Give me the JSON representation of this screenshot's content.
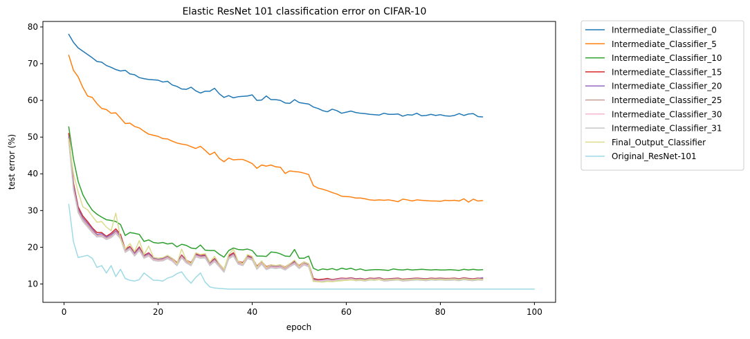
{
  "chart_data": {
    "type": "line",
    "title": "Elastic ResNet 101 classification error on CIFAR-10",
    "xlabel": "epoch",
    "ylabel": "test error (%)",
    "xlim": [
      -4.5,
      104.5
    ],
    "ylim": [
      5,
      81.5
    ],
    "xticks": [
      0,
      20,
      40,
      60,
      80,
      100
    ],
    "yticks": [
      10,
      20,
      30,
      40,
      50,
      60,
      70,
      80
    ],
    "grid": false,
    "legend_position": "outside-right",
    "series": [
      {
        "name": "Intermediate_Classifier_0",
        "color": "#1f77b4",
        "x_start": 1,
        "values": [
          78.0,
          75.8,
          74.3,
          73.4,
          72.5,
          71.6,
          70.6,
          70.4,
          69.5,
          69.0,
          68.4,
          68.0,
          68.2,
          67.2,
          67.0,
          66.2,
          65.9,
          65.7,
          65.6,
          65.5,
          65.0,
          65.2,
          64.2,
          63.8,
          63.1,
          63.0,
          63.6,
          62.6,
          62.0,
          62.5,
          62.5,
          63.3,
          61.8,
          60.8,
          61.3,
          60.7,
          61.0,
          61.1,
          61.2,
          61.5,
          60.0,
          60.1,
          61.2,
          60.2,
          60.2,
          60.0,
          59.3,
          59.2,
          60.2,
          59.4,
          59.2,
          59.0,
          58.2,
          57.8,
          57.2,
          56.9,
          57.6,
          57.2,
          56.5,
          56.8,
          57.1,
          56.7,
          56.5,
          56.4,
          56.2,
          56.1,
          56.0,
          56.5,
          56.2,
          56.2,
          56.3,
          55.7,
          56.1,
          56.0,
          56.5,
          55.8,
          55.9,
          56.2,
          55.9,
          56.1,
          55.8,
          55.7,
          55.9,
          56.4,
          55.9,
          56.3,
          56.4,
          55.6,
          55.5
        ]
      },
      {
        "name": "Intermediate_Classifier_5",
        "color": "#ff7f0e",
        "x_start": 1,
        "values": [
          72.3,
          68.2,
          66.4,
          63.5,
          61.2,
          60.8,
          59.1,
          57.8,
          57.5,
          56.5,
          56.6,
          55.2,
          53.7,
          53.8,
          52.9,
          52.5,
          51.6,
          50.8,
          50.5,
          50.2,
          49.6,
          49.5,
          48.9,
          48.4,
          48.1,
          47.9,
          47.4,
          46.9,
          47.5,
          46.4,
          45.2,
          45.9,
          44.2,
          43.3,
          44.3,
          43.8,
          43.9,
          43.9,
          43.4,
          42.8,
          41.5,
          42.4,
          42.1,
          42.4,
          41.9,
          41.8,
          40.1,
          40.8,
          40.6,
          40.5,
          40.2,
          39.8,
          36.8,
          36.1,
          35.8,
          35.4,
          34.9,
          34.5,
          33.9,
          33.8,
          33.7,
          33.4,
          33.4,
          33.2,
          32.9,
          32.8,
          32.9,
          32.8,
          32.9,
          32.7,
          32.4,
          33.1,
          32.9,
          32.6,
          32.9,
          32.8,
          32.7,
          32.6,
          32.6,
          32.5,
          32.8,
          32.7,
          32.8,
          32.6,
          33.2,
          32.3,
          33.1,
          32.6,
          32.7
        ]
      },
      {
        "name": "Intermediate_Classifier_10",
        "color": "#2ca02c",
        "x_start": 1,
        "values": [
          52.8,
          44.0,
          37.9,
          34.3,
          32.0,
          30.1,
          29.0,
          28.2,
          27.5,
          27.3,
          27.0,
          26.2,
          23.2,
          24.0,
          23.8,
          23.5,
          21.6,
          22.0,
          21.3,
          21.1,
          21.3,
          20.9,
          21.1,
          20.1,
          20.8,
          20.5,
          19.8,
          19.6,
          20.6,
          19.2,
          19.1,
          19.1,
          18.1,
          17.3,
          19.1,
          19.8,
          19.4,
          19.3,
          19.5,
          19.1,
          17.6,
          17.6,
          17.5,
          18.7,
          18.6,
          18.2,
          17.6,
          17.5,
          19.4,
          17.0,
          17.0,
          17.6,
          14.3,
          13.7,
          14.1,
          13.9,
          14.2,
          13.8,
          14.3,
          14.0,
          14.3,
          13.8,
          14.1,
          13.7,
          13.8,
          13.9,
          13.9,
          13.8,
          13.7,
          14.1,
          13.9,
          13.8,
          14.0,
          13.8,
          13.9,
          14.0,
          13.9,
          13.8,
          13.9,
          13.8,
          13.8,
          13.9,
          13.8,
          13.7,
          14.0,
          13.8,
          14.0,
          13.8,
          13.9
        ]
      },
      {
        "name": "Intermediate_Classifier_15",
        "color": "#d62728",
        "x_start": 1,
        "values": [
          51.0,
          37.5,
          31.0,
          28.5,
          27.0,
          25.3,
          24.0,
          24.0,
          23.0,
          23.8,
          25.0,
          23.5,
          19.5,
          20.2,
          18.5,
          20.1,
          17.8,
          18.5,
          17.2,
          17.0,
          17.0,
          17.7,
          17.0,
          15.8,
          17.9,
          16.5,
          15.8,
          18.2,
          17.8,
          17.9,
          15.8,
          16.9,
          15.5,
          14.0,
          17.7,
          18.5,
          16.2,
          15.8,
          17.7,
          17.3,
          14.8,
          16.2,
          14.7,
          15.2,
          15.0,
          15.2,
          14.6,
          15.5,
          16.2,
          15.0,
          16.0,
          15.5,
          11.5,
          11.2,
          11.3,
          11.5,
          11.2,
          11.4,
          11.6,
          11.5,
          11.7,
          11.4,
          11.5,
          11.3,
          11.6,
          11.5,
          11.7,
          11.3,
          11.4,
          11.5,
          11.6,
          11.3,
          11.4,
          11.5,
          11.6,
          11.5,
          11.4,
          11.6,
          11.5,
          11.6,
          11.5,
          11.5,
          11.6,
          11.4,
          11.7,
          11.5,
          11.4,
          11.6,
          11.5
        ]
      },
      {
        "name": "Intermediate_Classifier_20",
        "color": "#9467bd",
        "x_start": 1,
        "values": [
          50.0,
          36.8,
          30.5,
          28.0,
          26.5,
          25.0,
          23.5,
          23.7,
          22.8,
          23.4,
          24.5,
          23.0,
          19.2,
          20.0,
          18.3,
          19.8,
          17.6,
          18.3,
          17.0,
          16.8,
          16.9,
          17.5,
          16.8,
          15.6,
          17.7,
          16.3,
          15.6,
          18.0,
          17.6,
          17.7,
          15.6,
          16.7,
          15.3,
          13.8,
          17.4,
          18.2,
          16.0,
          15.6,
          17.5,
          17.1,
          14.6,
          16.0,
          14.5,
          15.0,
          14.8,
          15.0,
          14.4,
          15.3,
          16.0,
          14.8,
          15.8,
          15.3,
          11.3,
          11.0,
          11.1,
          11.3,
          11.1,
          11.3,
          11.5,
          11.4,
          11.6,
          11.3,
          11.4,
          11.2,
          11.5,
          11.4,
          11.6,
          11.2,
          11.3,
          11.4,
          11.5,
          11.2,
          11.3,
          11.4,
          11.5,
          11.4,
          11.3,
          11.5,
          11.4,
          11.5,
          11.4,
          11.4,
          11.5,
          11.3,
          11.6,
          11.4,
          11.3,
          11.5,
          11.7
        ]
      },
      {
        "name": "Intermediate_Classifier_25",
        "color": "#c49c94",
        "x_start": 1,
        "values": [
          49.5,
          36.2,
          30.0,
          27.5,
          26.0,
          24.5,
          23.2,
          23.3,
          22.5,
          23.0,
          24.2,
          22.7,
          19.0,
          19.8,
          18.0,
          19.5,
          17.4,
          18.0,
          16.8,
          16.6,
          16.7,
          17.3,
          16.6,
          15.4,
          17.5,
          16.1,
          15.4,
          17.8,
          17.4,
          17.5,
          15.4,
          16.5,
          15.1,
          13.6,
          17.2,
          18.0,
          15.8,
          15.4,
          17.3,
          16.9,
          14.4,
          15.8,
          14.3,
          14.8,
          14.6,
          14.8,
          14.2,
          15.1,
          15.8,
          14.6,
          15.6,
          15.1,
          11.1,
          10.9,
          11.0,
          11.2,
          11.0,
          11.2,
          11.4,
          11.3,
          11.5,
          11.2,
          11.3,
          11.1,
          11.4,
          11.3,
          11.5,
          11.1,
          11.2,
          11.3,
          11.4,
          11.1,
          11.2,
          11.3,
          11.4,
          11.3,
          11.2,
          11.4,
          11.3,
          11.4,
          11.3,
          11.3,
          11.4,
          11.2,
          11.5,
          11.3,
          11.2,
          11.4,
          11.3
        ]
      },
      {
        "name": "Intermediate_Classifier_30",
        "color": "#f7b6d2",
        "x_start": 1,
        "values": [
          49.0,
          35.8,
          29.6,
          27.2,
          25.7,
          24.2,
          23.0,
          23.1,
          22.3,
          22.8,
          24.0,
          22.5,
          18.8,
          19.6,
          17.8,
          19.3,
          17.2,
          17.8,
          16.6,
          16.4,
          16.5,
          17.1,
          16.4,
          15.2,
          17.3,
          15.9,
          15.2,
          17.6,
          17.2,
          17.3,
          15.2,
          16.3,
          14.9,
          13.4,
          17.0,
          17.8,
          15.6,
          15.2,
          17.1,
          16.7,
          14.2,
          15.6,
          14.1,
          14.6,
          14.4,
          14.6,
          14.0,
          14.9,
          15.6,
          14.4,
          15.4,
          14.9,
          10.9,
          10.8,
          10.9,
          11.1,
          10.9,
          11.1,
          11.3,
          11.2,
          11.4,
          11.1,
          11.2,
          11.0,
          11.3,
          11.2,
          11.4,
          11.0,
          11.1,
          11.2,
          11.3,
          11.0,
          11.1,
          11.2,
          11.3,
          11.2,
          11.1,
          11.3,
          11.2,
          11.3,
          11.2,
          11.2,
          11.3,
          11.1,
          11.4,
          11.2,
          11.1,
          11.3,
          11.2
        ]
      },
      {
        "name": "Intermediate_Classifier_31",
        "color": "#c7c7c7",
        "x_start": 1,
        "values": [
          48.8,
          35.6,
          29.4,
          27.0,
          25.5,
          24.0,
          22.8,
          22.9,
          22.1,
          22.6,
          23.8,
          22.3,
          18.6,
          19.4,
          17.6,
          19.1,
          17.0,
          17.6,
          16.4,
          16.2,
          16.3,
          16.9,
          16.2,
          15.0,
          17.1,
          15.7,
          15.0,
          17.4,
          17.0,
          17.1,
          15.0,
          16.1,
          14.7,
          13.2,
          16.8,
          17.6,
          15.4,
          15.0,
          16.9,
          16.5,
          14.0,
          15.4,
          13.9,
          14.4,
          14.2,
          14.4,
          13.8,
          14.7,
          15.4,
          14.2,
          15.2,
          14.7,
          10.7,
          10.6,
          10.7,
          10.9,
          10.7,
          10.9,
          11.1,
          11.0,
          11.2,
          10.9,
          11.0,
          10.8,
          11.1,
          11.0,
          11.2,
          10.8,
          10.9,
          11.0,
          11.1,
          10.8,
          10.9,
          11.0,
          11.1,
          11.0,
          10.9,
          11.1,
          11.0,
          11.1,
          11.0,
          11.0,
          11.1,
          10.9,
          11.2,
          11.0,
          10.9,
          11.1,
          11.0
        ]
      },
      {
        "name": "Final_Output_Classifier",
        "color": "#dbdb8d",
        "x_start": 1,
        "values": [
          49.5,
          40.0,
          35.0,
          31.0,
          30.2,
          28.5,
          26.8,
          27.0,
          25.5,
          24.5,
          29.3,
          22.5,
          19.5,
          21.0,
          18.8,
          21.8,
          18.0,
          20.3,
          17.3,
          17.0,
          17.2,
          17.8,
          17.0,
          15.5,
          19.5,
          16.5,
          15.5,
          18.5,
          18.0,
          18.3,
          16.0,
          17.5,
          15.5,
          14.0,
          18.0,
          19.5,
          16.2,
          15.5,
          18.0,
          17.5,
          14.5,
          16.3,
          14.5,
          15.2,
          15.0,
          15.2,
          14.5,
          15.5,
          16.5,
          14.8,
          16.0,
          15.5,
          10.8,
          10.6,
          10.5,
          10.7,
          10.6,
          10.8,
          10.9,
          11.0,
          11.1,
          11.0,
          11.1,
          11.0,
          11.2,
          11.1,
          11.2,
          11.1,
          11.2,
          11.2,
          11.2,
          11.1,
          11.2,
          11.2,
          11.3,
          11.2,
          11.2,
          11.3,
          11.2,
          11.3,
          11.2,
          11.3,
          11.3,
          11.2,
          11.4,
          11.2,
          11.2,
          11.3,
          11.2
        ]
      },
      {
        "name": "Original_ResNet-101",
        "color": "#9edae5",
        "x_start": 1,
        "values": [
          31.7,
          21.5,
          17.2,
          17.5,
          17.8,
          17.0,
          14.5,
          15.0,
          13.0,
          15.0,
          12.0,
          14.0,
          11.5,
          11.0,
          10.8,
          11.2,
          13.0,
          12.0,
          11.0,
          11.0,
          10.8,
          11.6,
          12.0,
          12.8,
          13.3,
          11.5,
          10.2,
          11.8,
          13.0,
          10.5,
          9.2,
          8.9,
          8.8,
          8.7,
          8.6,
          8.6,
          8.6,
          8.6,
          8.6,
          8.6,
          8.6,
          8.6,
          8.6,
          8.6,
          8.6,
          8.6,
          8.6,
          8.6,
          8.6,
          8.6,
          8.6,
          8.6,
          8.6,
          8.6,
          8.6,
          8.6,
          8.6,
          8.6,
          8.6,
          8.6,
          8.6,
          8.6,
          8.6,
          8.6,
          8.6,
          8.6,
          8.6,
          8.6,
          8.6,
          8.6,
          8.6,
          8.6,
          8.6,
          8.6,
          8.6,
          8.6,
          8.6,
          8.6,
          8.6,
          8.6,
          8.6,
          8.6,
          8.6,
          8.6,
          8.6,
          8.6,
          8.6,
          8.6,
          8.6,
          8.6,
          8.6,
          8.6,
          8.6,
          8.6,
          8.6,
          8.6,
          8.6,
          8.6,
          8.6,
          8.6
        ]
      }
    ]
  }
}
